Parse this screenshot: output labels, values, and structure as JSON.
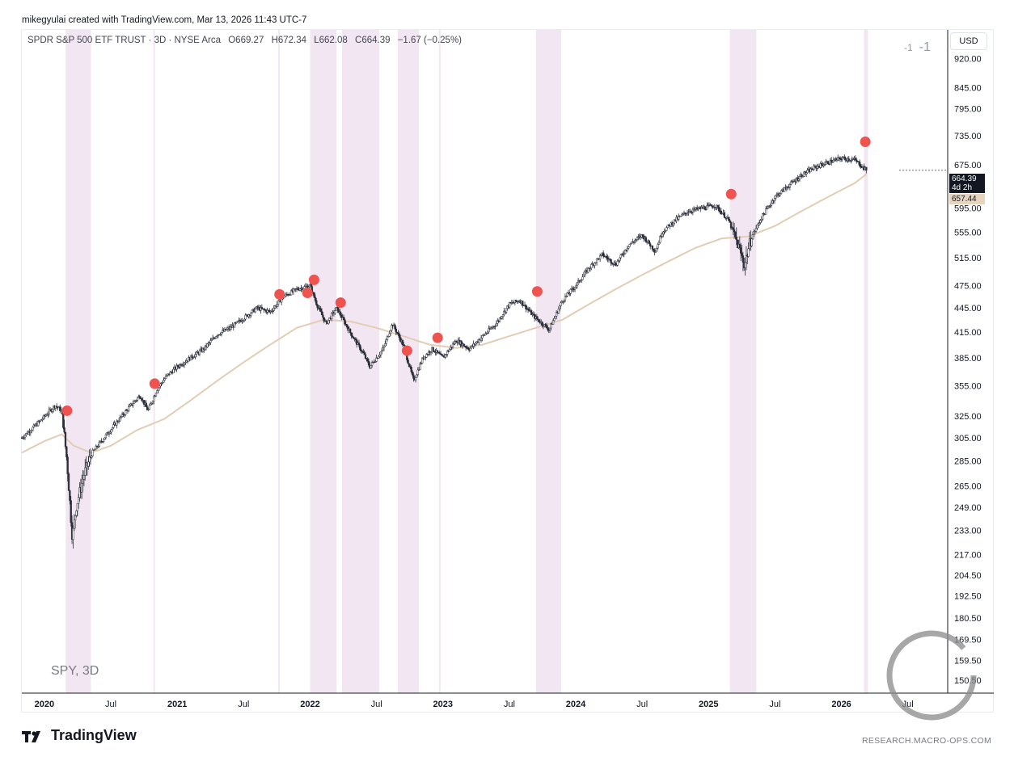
{
  "header": {
    "created_by": "mikegyulai created with TradingView.com, Mar 13, 2026 11:43 UTC-7"
  },
  "legend": {
    "symbol": "SPDR S&P 500 ETF TRUST · 3D · NYSE Arca",
    "open": "O669.27",
    "high": "H672.34",
    "low": "L662.08",
    "close": "C664.39",
    "change": "−1.67 (−0.25%)"
  },
  "currency": "USD",
  "counter": {
    "small": "-1",
    "large": "-1"
  },
  "symbol_label": "SPY, 3D",
  "last_price": {
    "value": "664.39",
    "countdown": "4d 2h"
  },
  "ma_price": "657.44",
  "footer": {
    "brand": "TradingView",
    "watermark": "RESEARCH.MACRO-OPS.COM"
  },
  "colors": {
    "candle": "#2a2e39",
    "ma": "#e2cdb4",
    "band": "#f3e6f3",
    "signal": "#ef5350",
    "axis": "#131722"
  },
  "chart_data": {
    "type": "line",
    "title": "SPDR S&P 500 ETF TRUST · 3D · NYSE Arca",
    "y_scale": "log",
    "ylim": [
      145,
      1000
    ],
    "xlim": [
      2019.83,
      2026.8
    ],
    "y_ticks": [
      "920.00",
      "845.00",
      "795.00",
      "735.00",
      "675.00",
      "595.00",
      "555.00",
      "515.00",
      "475.00",
      "445.00",
      "415.00",
      "385.00",
      "355.00",
      "325.00",
      "305.00",
      "285.00",
      "265.00",
      "249.00",
      "233.00",
      "217.00",
      "204.50",
      "192.50",
      "180.50",
      "169.50",
      "159.50",
      "150.50"
    ],
    "x_ticks": [
      {
        "label": "2020",
        "x": 2020.0,
        "bold": true
      },
      {
        "label": "Jul",
        "x": 2020.5,
        "bold": false
      },
      {
        "label": "2021",
        "x": 2021.0,
        "bold": true
      },
      {
        "label": "Jul",
        "x": 2021.5,
        "bold": false
      },
      {
        "label": "2022",
        "x": 2022.0,
        "bold": true
      },
      {
        "label": "Jul",
        "x": 2022.5,
        "bold": false
      },
      {
        "label": "2023",
        "x": 2023.0,
        "bold": true
      },
      {
        "label": "Jul",
        "x": 2023.5,
        "bold": false
      },
      {
        "label": "2024",
        "x": 2024.0,
        "bold": true
      },
      {
        "label": "Jul",
        "x": 2024.5,
        "bold": false
      },
      {
        "label": "2025",
        "x": 2025.0,
        "bold": true
      },
      {
        "label": "Jul",
        "x": 2025.5,
        "bold": false
      },
      {
        "label": "2026",
        "x": 2026.0,
        "bold": true
      },
      {
        "label": "Jul",
        "x": 2026.5,
        "bold": false
      }
    ],
    "price_path": [
      [
        2019.83,
        305
      ],
      [
        2019.95,
        318
      ],
      [
        2020.08,
        335
      ],
      [
        2020.13,
        330
      ],
      [
        2020.17,
        285
      ],
      [
        2020.21,
        228
      ],
      [
        2020.24,
        250
      ],
      [
        2020.3,
        275
      ],
      [
        2020.36,
        292
      ],
      [
        2020.45,
        305
      ],
      [
        2020.55,
        320
      ],
      [
        2020.65,
        335
      ],
      [
        2020.72,
        345
      ],
      [
        2020.78,
        330
      ],
      [
        2020.85,
        352
      ],
      [
        2020.92,
        365
      ],
      [
        2021.0,
        375
      ],
      [
        2021.1,
        385
      ],
      [
        2021.2,
        395
      ],
      [
        2021.3,
        412
      ],
      [
        2021.4,
        420
      ],
      [
        2021.5,
        432
      ],
      [
        2021.6,
        445
      ],
      [
        2021.7,
        440
      ],
      [
        2021.8,
        460
      ],
      [
        2021.9,
        470
      ],
      [
        2022.0,
        475
      ],
      [
        2022.05,
        450
      ],
      [
        2022.12,
        425
      ],
      [
        2022.2,
        445
      ],
      [
        2022.3,
        415
      ],
      [
        2022.4,
        390
      ],
      [
        2022.45,
        375
      ],
      [
        2022.55,
        395
      ],
      [
        2022.62,
        425
      ],
      [
        2022.7,
        400
      ],
      [
        2022.78,
        360
      ],
      [
        2022.85,
        385
      ],
      [
        2022.92,
        395
      ],
      [
        2023.0,
        385
      ],
      [
        2023.1,
        405
      ],
      [
        2023.2,
        395
      ],
      [
        2023.3,
        410
      ],
      [
        2023.4,
        425
      ],
      [
        2023.5,
        450
      ],
      [
        2023.58,
        455
      ],
      [
        2023.68,
        435
      ],
      [
        2023.8,
        418
      ],
      [
        2023.9,
        455
      ],
      [
        2024.0,
        475
      ],
      [
        2024.1,
        500
      ],
      [
        2024.2,
        520
      ],
      [
        2024.3,
        505
      ],
      [
        2024.4,
        535
      ],
      [
        2024.5,
        550
      ],
      [
        2024.6,
        525
      ],
      [
        2024.65,
        555
      ],
      [
        2024.75,
        575
      ],
      [
        2024.85,
        590
      ],
      [
        2024.95,
        595
      ],
      [
        2025.05,
        600
      ],
      [
        2025.15,
        575
      ],
      [
        2025.22,
        535
      ],
      [
        2025.27,
        505
      ],
      [
        2025.32,
        545
      ],
      [
        2025.4,
        580
      ],
      [
        2025.5,
        615
      ],
      [
        2025.6,
        635
      ],
      [
        2025.7,
        655
      ],
      [
        2025.8,
        670
      ],
      [
        2025.9,
        680
      ],
      [
        2026.0,
        688
      ],
      [
        2026.1,
        685
      ],
      [
        2026.19,
        664
      ]
    ],
    "ma_path": [
      [
        2019.83,
        292
      ],
      [
        2020.0,
        302
      ],
      [
        2020.13,
        308
      ],
      [
        2020.22,
        298
      ],
      [
        2020.35,
        292
      ],
      [
        2020.5,
        298
      ],
      [
        2020.7,
        312
      ],
      [
        2020.9,
        322
      ],
      [
        2021.1,
        340
      ],
      [
        2021.3,
        360
      ],
      [
        2021.5,
        380
      ],
      [
        2021.7,
        400
      ],
      [
        2021.9,
        420
      ],
      [
        2022.1,
        430
      ],
      [
        2022.3,
        428
      ],
      [
        2022.5,
        420
      ],
      [
        2022.7,
        410
      ],
      [
        2022.9,
        400
      ],
      [
        2023.1,
        396
      ],
      [
        2023.3,
        400
      ],
      [
        2023.5,
        410
      ],
      [
        2023.7,
        420
      ],
      [
        2023.9,
        430
      ],
      [
        2024.1,
        450
      ],
      [
        2024.3,
        470
      ],
      [
        2024.5,
        490
      ],
      [
        2024.7,
        510
      ],
      [
        2024.9,
        530
      ],
      [
        2025.1,
        545
      ],
      [
        2025.3,
        548
      ],
      [
        2025.5,
        565
      ],
      [
        2025.7,
        590
      ],
      [
        2025.9,
        615
      ],
      [
        2026.1,
        640
      ],
      [
        2026.19,
        657.44
      ]
    ],
    "signals": [
      {
        "x": 2020.17,
        "y": 330
      },
      {
        "x": 2020.83,
        "y": 357
      },
      {
        "x": 2021.77,
        "y": 463
      },
      {
        "x": 2021.98,
        "y": 465
      },
      {
        "x": 2022.03,
        "y": 483
      },
      {
        "x": 2022.23,
        "y": 452
      },
      {
        "x": 2022.73,
        "y": 393
      },
      {
        "x": 2022.96,
        "y": 408
      },
      {
        "x": 2023.71,
        "y": 467
      },
      {
        "x": 2025.17,
        "y": 620
      },
      {
        "x": 2026.18,
        "y": 722
      }
    ],
    "bands": [
      {
        "x0": 2020.16,
        "x1": 2020.35
      },
      {
        "x0": 2022.0,
        "x1": 2022.2
      },
      {
        "x0": 2022.24,
        "x1": 2022.52
      },
      {
        "x0": 2022.66,
        "x1": 2022.82
      },
      {
        "x0": 2023.7,
        "x1": 2023.89
      },
      {
        "x0": 2025.16,
        "x1": 2025.36
      },
      {
        "x0": 2026.17,
        "x1": 2026.2
      }
    ],
    "vlines": [
      2020.82,
      2021.76,
      2022.05,
      2022.97
    ],
    "grid": false,
    "legend_position": "top-left"
  }
}
